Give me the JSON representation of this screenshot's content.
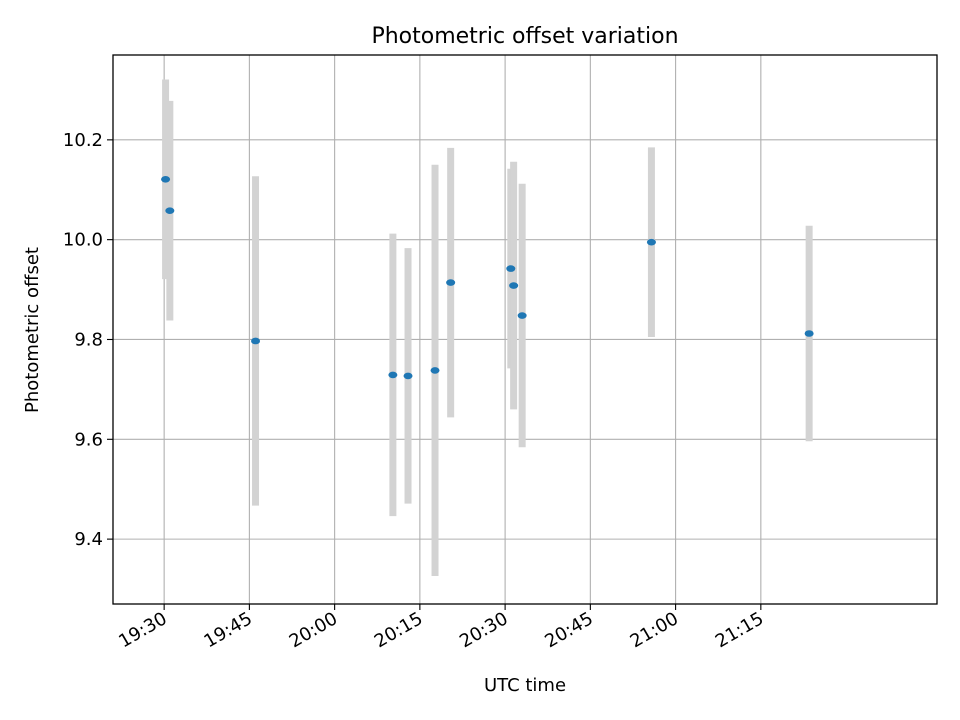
{
  "chart_data": {
    "type": "scatter",
    "title": "Photometric offset variation",
    "xlabel": "UTC time",
    "ylabel": "Photometric offset",
    "x_is_time": true,
    "xlim": [
      "19:21",
      "21:46"
    ],
    "ylim": [
      9.27,
      10.37
    ],
    "xticks": [
      "19:30",
      "19:45",
      "20:00",
      "20:15",
      "20:30",
      "20:45",
      "21:00",
      "21:15"
    ],
    "yticks": [
      9.4,
      9.6,
      9.8,
      10.0,
      10.2
    ],
    "grid": true,
    "marker_color": "#1f77b4",
    "errorbar_color": "#d3d3d3",
    "points": [
      {
        "time": "19:30:15",
        "value": 10.121,
        "err": 0.2
      },
      {
        "time": "19:31:00",
        "value": 10.058,
        "err": 0.22
      },
      {
        "time": "19:46:05",
        "value": 9.797,
        "err": 0.33
      },
      {
        "time": "20:10:15",
        "value": 9.729,
        "err": 0.283
      },
      {
        "time": "20:12:55",
        "value": 9.727,
        "err": 0.256
      },
      {
        "time": "20:17:40",
        "value": 9.738,
        "err": 0.412
      },
      {
        "time": "20:20:25",
        "value": 9.914,
        "err": 0.27
      },
      {
        "time": "20:31:00",
        "value": 9.942,
        "err": 0.2
      },
      {
        "time": "20:31:30",
        "value": 9.908,
        "err": 0.248
      },
      {
        "time": "20:33:00",
        "value": 9.848,
        "err": 0.264
      },
      {
        "time": "20:55:45",
        "value": 9.995,
        "err": 0.19
      },
      {
        "time": "21:23:30",
        "value": 9.812,
        "err": 0.216
      }
    ]
  }
}
